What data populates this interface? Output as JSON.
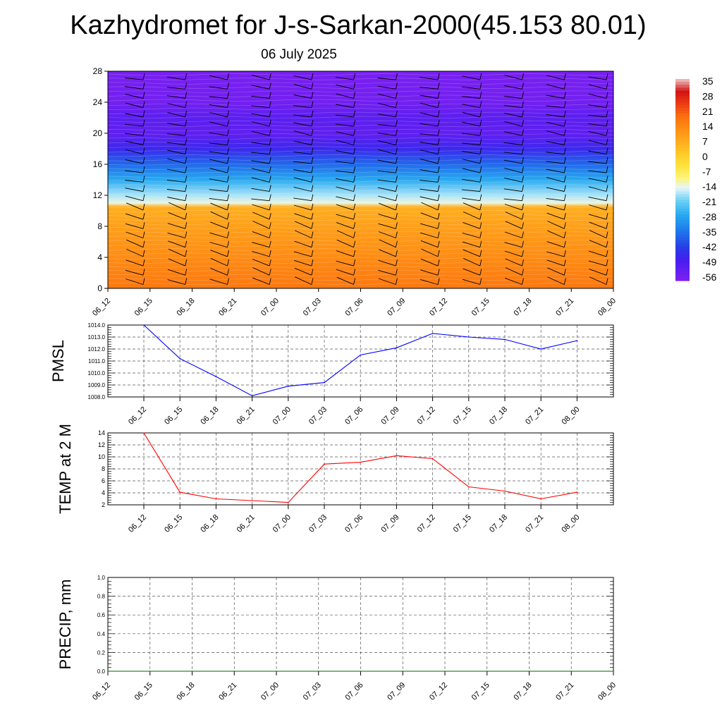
{
  "title": "Kazhydromet for J-s-Sarkan-2000(45.153 80.01)",
  "subtitle": "06 July 2025",
  "colors": {
    "pmsl_line": "#0000ff",
    "temp_line": "#ff0000",
    "precip_line": "#006400",
    "grid": "#555555",
    "barb": "#000000"
  },
  "chart_data": [
    {
      "id": "cross-section",
      "type": "heatmap",
      "description_kind": "time-height contour with wind barbs",
      "x": [
        "06_12",
        "06_15",
        "06_18",
        "06_21",
        "07_00",
        "07_03",
        "07_06",
        "07_09",
        "07_12",
        "07_15",
        "07_18",
        "07_21",
        "08_00"
      ],
      "y_ticks": [
        0,
        4,
        8,
        12,
        16,
        20,
        24,
        28
      ],
      "ylim": [
        0,
        28
      ],
      "colorbar": {
        "labels": [
          "35",
          "28",
          "21",
          "14",
          "7",
          "0",
          "-7",
          "-14",
          "-21",
          "-28",
          "-35",
          "-42",
          "-49",
          "-56"
        ],
        "range": [
          -60,
          38
        ]
      },
      "vertical_profile": [
        {
          "level": 0,
          "value": 18
        },
        {
          "level": 4,
          "value": 14
        },
        {
          "level": 8,
          "value": 10
        },
        {
          "level": 10.5,
          "value": 7
        },
        {
          "level": 11,
          "value": -14
        },
        {
          "level": 12,
          "value": -18
        },
        {
          "level": 14,
          "value": -28
        },
        {
          "level": 16,
          "value": -38
        },
        {
          "level": 18,
          "value": -48
        },
        {
          "level": 20,
          "value": -55
        },
        {
          "level": 22,
          "value": -54
        },
        {
          "level": 24,
          "value": -58
        },
        {
          "level": 28,
          "value": -59
        }
      ]
    },
    {
      "id": "pmsl",
      "type": "line",
      "ylabel": "PMSL",
      "x": [
        "06_12",
        "06_15",
        "06_18",
        "06_21",
        "07_00",
        "07_03",
        "07_06",
        "07_09",
        "07_12",
        "07_15",
        "07_18",
        "07_21",
        "08_00"
      ],
      "y_ticks": [
        "1008.0",
        "1009.0",
        "1010.0",
        "1011.0",
        "1012.0",
        "1013.0",
        "1014.0"
      ],
      "ylim": [
        1008,
        1014
      ],
      "values": [
        1014.0,
        1011.2,
        1009.7,
        1008.1,
        1008.9,
        1009.2,
        1011.5,
        1012.1,
        1013.3,
        1013.0,
        1012.8,
        1012.0,
        1012.7
      ],
      "grid": true
    },
    {
      "id": "temp",
      "type": "line",
      "ylabel": "TEMP at 2 M",
      "x": [
        "06_12",
        "06_15",
        "06_18",
        "06_21",
        "07_00",
        "07_03",
        "07_06",
        "07_09",
        "07_12",
        "07_15",
        "07_18",
        "07_21",
        "08_00"
      ],
      "y_ticks": [
        "2",
        "4",
        "6",
        "8",
        "10",
        "12",
        "14"
      ],
      "ylim": [
        2,
        14
      ],
      "values": [
        14.0,
        4.1,
        3.0,
        2.7,
        2.4,
        8.8,
        9.1,
        10.2,
        9.7,
        5.0,
        4.3,
        3.0,
        4.1
      ],
      "grid": true
    },
    {
      "id": "precip",
      "type": "line",
      "ylabel": "PRECIP, mm",
      "x": [
        "06_12",
        "06_15",
        "06_18",
        "06_21",
        "07_00",
        "07_03",
        "07_06",
        "07_09",
        "07_12",
        "07_15",
        "07_18",
        "07_21",
        "08_00"
      ],
      "y_ticks": [
        "0.0",
        "0.2",
        "0.4",
        "0.6",
        "0.8",
        "1.0"
      ],
      "ylim": [
        0,
        1
      ],
      "values": [
        0,
        0,
        0,
        0,
        0,
        0,
        0,
        0,
        0,
        0,
        0,
        0,
        0
      ],
      "grid": true
    }
  ]
}
